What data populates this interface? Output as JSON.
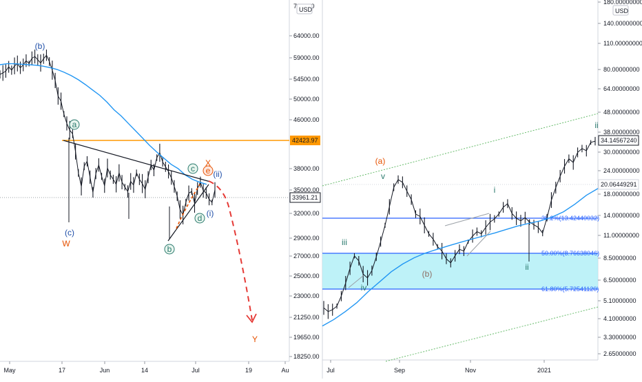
{
  "colors": {
    "candle": "#131722",
    "ma": "#2196f3",
    "wave_blue": "#1e4ea8",
    "wave_red": "#e65100",
    "wave_teal": "#2b7a6e",
    "wave_brown": "#8d6e63",
    "resistance": "#ff9800",
    "fib_line": "#2962ff",
    "fib_band": "#b3f0f7",
    "channel": "#66bb6a",
    "projection": "#e53935",
    "cursor_line": "#9aa0a6"
  },
  "chart_data": [
    {
      "type": "line",
      "title": "",
      "currency_badge": "USD",
      "x_ticks": [
        "May",
        "17",
        "Jun",
        "14",
        "Jul",
        "19",
        "Au"
      ],
      "y_ticks": [
        "64000.00",
        "59000.00",
        "54500.00",
        "50000.00",
        "46000.00",
        "38000.00",
        "35000.00",
        "32000.00",
        "29000.00",
        "27000.00",
        "25000.00",
        "23000.00",
        "21250.00",
        "19650.00",
        "18250.00"
      ],
      "y_top_partial": "72·0.00",
      "price_tags": [
        {
          "text": "42423.97",
          "color": "#ff9800"
        },
        {
          "text": "33961.21",
          "color": "#131722"
        }
      ],
      "price_series": [
        55500,
        55800,
        56200,
        57100,
        56400,
        57300,
        57800,
        56900,
        57500,
        58400,
        57800,
        58900,
        59300,
        58600,
        57900,
        58800,
        59600,
        58200,
        56400,
        54200,
        50700,
        49600,
        47100,
        45400,
        44300,
        43700,
        40800,
        37400,
        35500,
        38400,
        39200,
        36800,
        34700,
        37300,
        38600,
        36900,
        35600,
        38100,
        37100,
        36500,
        35800,
        37400,
        36100,
        35400,
        34800,
        36200,
        35700,
        37400,
        36500,
        35900,
        35100,
        36800,
        38600,
        37800,
        39800,
        40600,
        39100,
        38300,
        37600,
        36700,
        35500,
        34200,
        32500,
        31800,
        33400,
        34600,
        34800,
        33300,
        35200,
        36100,
        34900,
        34600,
        33800,
        33400,
        35000
      ],
      "ma_series": [
        57400,
        57600,
        57600,
        57500,
        57400,
        57300,
        57100,
        56800,
        56400,
        55800,
        55100,
        54200,
        53100,
        51900,
        50700,
        49300,
        47800,
        46600,
        45300,
        44100,
        42900,
        41700,
        40600,
        39600,
        38600,
        37900,
        37000,
        36400,
        36000,
        35700
      ],
      "resistance_level": 42423.97,
      "current_price": 33961.21,
      "wave_labels": [
        {
          "text": "(b)",
          "style": "blue"
        },
        {
          "text": "a",
          "style": "circle"
        },
        {
          "text": "(c)",
          "style": "blue"
        },
        {
          "text": "W",
          "style": "red"
        },
        {
          "text": "b",
          "style": "circle"
        },
        {
          "text": "c",
          "style": "circle"
        },
        {
          "text": "d",
          "style": "circle"
        },
        {
          "text": "e",
          "style": "circle-red"
        },
        {
          "text": "X",
          "style": "red"
        },
        {
          "text": "(ii)",
          "style": "blue"
        },
        {
          "text": "(i)",
          "style": "blue"
        },
        {
          "text": "Y",
          "style": "red"
        }
      ]
    },
    {
      "type": "line",
      "title": "",
      "currency_badge": "USD",
      "log_scale": true,
      "x_ticks": [
        "Jul",
        "Sep",
        "Nov",
        "2021"
      ],
      "y_ticks": [
        "180.00000000",
        "140.00000000",
        "110.00000000",
        "80.00000000",
        "64.00000000",
        "48.00000000",
        "38.00000000",
        "30.00000000",
        "24.00000000",
        "18.00000000",
        "14.00000000",
        "11.00000000",
        "8.50000000",
        "6.50000000",
        "5.10000000",
        "4.10000000",
        "3.30000000",
        "2.65000000"
      ],
      "price_tags": [
        {
          "text": "34.14567240",
          "color": "#131722"
        },
        {
          "text": "20.06449291",
          "color": "#131722"
        }
      ],
      "fib_levels": [
        {
          "label": "38.2%(13.42440032)",
          "value": 13.4244
        },
        {
          "label": "50.00%(8.76638046)",
          "value": 8.76638046
        },
        {
          "label": "61.80%(5.72541120)",
          "value": 5.7254112
        }
      ],
      "price_series": [
        4.6,
        4.4,
        4.5,
        4.7,
        5.3,
        6.2,
        7.4,
        8.6,
        8.1,
        6.9,
        6.6,
        7.2,
        8.5,
        10.2,
        12.4,
        15.5,
        19.6,
        21.5,
        20.8,
        18.7,
        16.9,
        14.2,
        13.8,
        12.4,
        11.2,
        10.5,
        9.6,
        9.1,
        8.3,
        7.9,
        8.6,
        9.3,
        9.1,
        10.2,
        10.9,
        11.5,
        11.2,
        12.1,
        12.9,
        13.4,
        14.2,
        15.4,
        16.1,
        14.3,
        13.5,
        13.1,
        13.6,
        12.9,
        12.5,
        12.1,
        11.3,
        13.6,
        16.8,
        19.5,
        22.4,
        25.2,
        27.6,
        26.4,
        29.8,
        31.2,
        30.4,
        33.6,
        34.1
      ],
      "ma_series": [
        3.7,
        4.0,
        4.4,
        4.9,
        5.6,
        6.3,
        7.1,
        7.8,
        8.4,
        8.9,
        9.3,
        9.7,
        10.1,
        10.5,
        10.9,
        11.3,
        11.8,
        12.3,
        12.7,
        13.1,
        13.7,
        14.6,
        16.0,
        17.8,
        19.3
      ],
      "current_price": 34.1456724,
      "wave_labels": [
        {
          "text": "(a)",
          "style": "red"
        },
        {
          "text": "v",
          "style": "teal"
        },
        {
          "text": "iii",
          "style": "teal"
        },
        {
          "text": "iv",
          "style": "teal"
        },
        {
          "text": "(b)",
          "style": "brown"
        },
        {
          "text": "i",
          "style": "teal"
        },
        {
          "text": "ii",
          "style": "teal"
        },
        {
          "text": "ii",
          "style": "teal"
        }
      ]
    }
  ]
}
